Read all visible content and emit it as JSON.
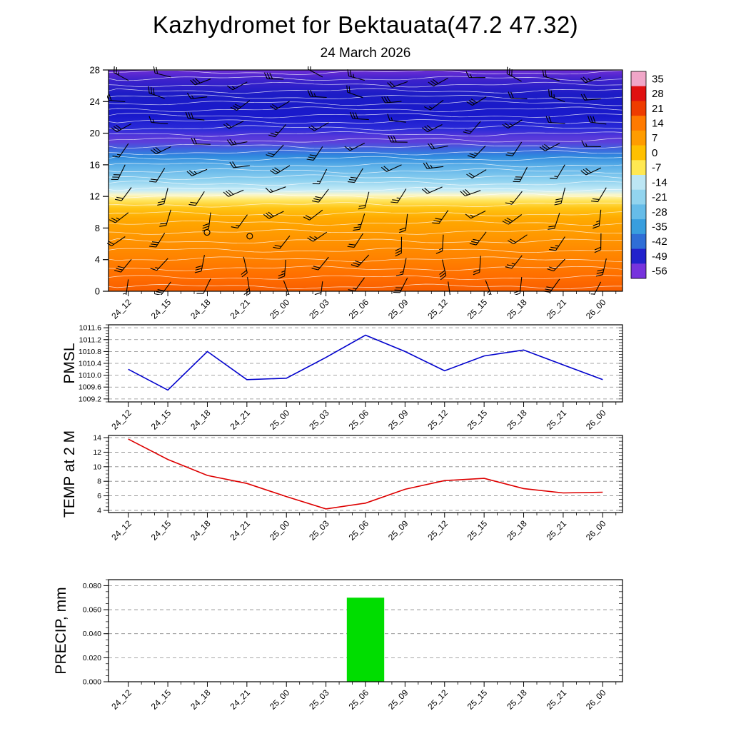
{
  "title": "Kazhydromet for Bektauata(47.2 47.32)",
  "subtitle": "24 March 2026",
  "x_categories": [
    "24_12",
    "24_15",
    "24_18",
    "24_21",
    "25_00",
    "25_03",
    "25_06",
    "25_09",
    "25_12",
    "25_15",
    "25_18",
    "25_21",
    "26_00"
  ],
  "chart_data": [
    {
      "type": "heatmap",
      "panel": "upper_air",
      "description": "Vertical temperature cross-section (height vs time) with wind barb overlay",
      "ylim": [
        0,
        28
      ],
      "yticks": [
        0,
        4,
        8,
        12,
        16,
        20,
        24,
        28
      ],
      "ytick_labels": [
        "0",
        "4",
        "8",
        "12",
        "16",
        "20",
        "24",
        "28"
      ],
      "overlay": "wind-barbs",
      "colorbar": {
        "tick_labels": [
          "35",
          "28",
          "21",
          "14",
          "7",
          "0",
          "-7",
          "-14",
          "-21",
          "-28",
          "-35",
          "-42",
          "-49",
          "-56"
        ],
        "colors_top_to_bottom": [
          "#f0a6c8",
          "#e01010",
          "#ee3c00",
          "#ff7a00",
          "#ff9c00",
          "#ffc000",
          "#ffe852",
          "#bce6f4",
          "#92d4ee",
          "#66bce8",
          "#389ede",
          "#2f6ed6",
          "#2222cc",
          "#7733dd"
        ]
      },
      "gradient_stops_top_to_bottom": [
        {
          "at": 0.0,
          "color": "#6f2ed6"
        },
        {
          "at": 0.045,
          "color": "#3d22cc"
        },
        {
          "at": 0.11,
          "color": "#1c1cc6"
        },
        {
          "at": 0.21,
          "color": "#1919cc"
        },
        {
          "at": 0.265,
          "color": "#2a2ad8"
        },
        {
          "at": 0.3,
          "color": "#5436da"
        },
        {
          "at": 0.325,
          "color": "#5c3eda"
        },
        {
          "at": 0.355,
          "color": "#3f62de"
        },
        {
          "at": 0.39,
          "color": "#2f8ade"
        },
        {
          "at": 0.435,
          "color": "#5cb0e8"
        },
        {
          "at": 0.5,
          "color": "#8fd2f0"
        },
        {
          "at": 0.545,
          "color": "#c8ecf6"
        },
        {
          "at": 0.565,
          "color": "#fbf7c8"
        },
        {
          "at": 0.59,
          "color": "#ffe55e"
        },
        {
          "at": 0.625,
          "color": "#ffc414"
        },
        {
          "at": 0.67,
          "color": "#ffaa00"
        },
        {
          "at": 0.75,
          "color": "#ff9800"
        },
        {
          "at": 0.86,
          "color": "#ff8000"
        },
        {
          "at": 0.94,
          "color": "#ff6c00"
        },
        {
          "at": 1.0,
          "color": "#f85e00"
        }
      ]
    },
    {
      "type": "line",
      "panel": "pmsl",
      "ylabel": "PMSL",
      "line_color": "#0000cc",
      "ylim": [
        1009.1,
        1011.7
      ],
      "yticks": [
        1009.2,
        1009.6,
        1010.0,
        1010.4,
        1010.8,
        1011.2,
        1011.6
      ],
      "ytick_labels": [
        "1009.2",
        "1009.6",
        "1010.0",
        "1010.4",
        "1010.8",
        "1011.2",
        "1011.6"
      ],
      "values": [
        1010.2,
        1009.5,
        1010.8,
        1009.85,
        1009.9,
        1010.6,
        1011.35,
        1010.8,
        1010.15,
        1010.65,
        1010.85,
        1010.35,
        1009.85
      ]
    },
    {
      "type": "line",
      "panel": "temp2m",
      "ylabel": "TEMP at 2 M",
      "line_color": "#dd0000",
      "ylim": [
        3.7,
        14.3
      ],
      "yticks": [
        4,
        6,
        8,
        10,
        12,
        14
      ],
      "ytick_labels": [
        "4",
        "6",
        "8",
        "10",
        "12",
        "14"
      ],
      "values": [
        13.8,
        11.0,
        8.8,
        7.7,
        5.9,
        4.2,
        5.0,
        6.9,
        8.1,
        8.4,
        7.0,
        6.4,
        6.5
      ]
    },
    {
      "type": "bar",
      "panel": "precip",
      "ylabel": "PRECIP, mm",
      "bar_color": "#00dd00",
      "ylim": [
        0,
        0.085
      ],
      "yticks": [
        0.0,
        0.02,
        0.04,
        0.06,
        0.08
      ],
      "ytick_labels": [
        "0.000",
        "0.020",
        "0.040",
        "0.060",
        "0.080"
      ],
      "values": [
        0,
        0,
        0,
        0,
        0,
        0,
        0.07,
        0,
        0,
        0,
        0,
        0,
        0
      ]
    }
  ]
}
